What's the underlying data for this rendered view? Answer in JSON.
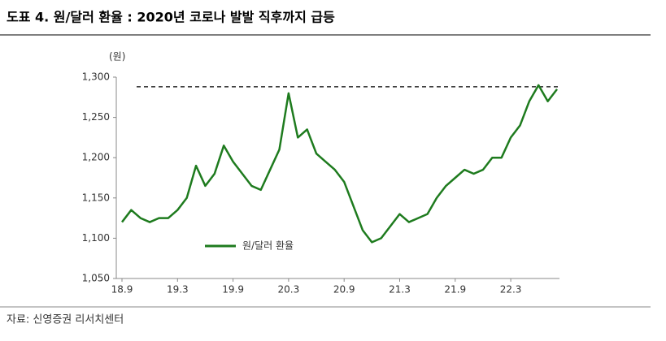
{
  "chart_data": {
    "type": "line",
    "title": "도표 4. 원/달러 환율 : 2020년 코로나 발발 직후까지 급등",
    "y_label": "(원)",
    "source": "자료: 신영증권 리서치센터",
    "categories": [
      "18.9",
      null,
      null,
      null,
      null,
      null,
      "19.3",
      null,
      null,
      null,
      null,
      null,
      "19.9",
      null,
      null,
      null,
      null,
      null,
      "20.3",
      null,
      null,
      null,
      null,
      null,
      "20.9",
      null,
      null,
      null,
      null,
      null,
      "21.3",
      null,
      null,
      null,
      null,
      null,
      "21.9",
      null,
      null,
      null,
      null,
      null,
      "22.3",
      null,
      null,
      null,
      null,
      null
    ],
    "series": [
      {
        "name": "원/달러 환율",
        "color": "#1e7b1e",
        "values": [
          1120,
          1135,
          1125,
          1120,
          1125,
          1125,
          1135,
          1150,
          1190,
          1165,
          1180,
          1215,
          1195,
          1180,
          1165,
          1160,
          1185,
          1210,
          1280,
          1225,
          1235,
          1205,
          1195,
          1185,
          1170,
          1140,
          1110,
          1095,
          1100,
          1115,
          1130,
          1120,
          1125,
          1130,
          1150,
          1165,
          1175,
          1185,
          1180,
          1185,
          1200,
          1200,
          1225,
          1240,
          1270,
          1290,
          1270,
          1285
        ]
      }
    ],
    "reference_line": 1288,
    "ylim": [
      1050,
      1300
    ],
    "yticks": [
      {
        "value": 1050,
        "label": "1,050"
      },
      {
        "value": 1100,
        "label": "1,100"
      },
      {
        "value": 1150,
        "label": "1,150"
      },
      {
        "value": 1200,
        "label": "1,200"
      },
      {
        "value": 1250,
        "label": "1,250"
      },
      {
        "value": 1300,
        "label": "1,300"
      }
    ]
  }
}
